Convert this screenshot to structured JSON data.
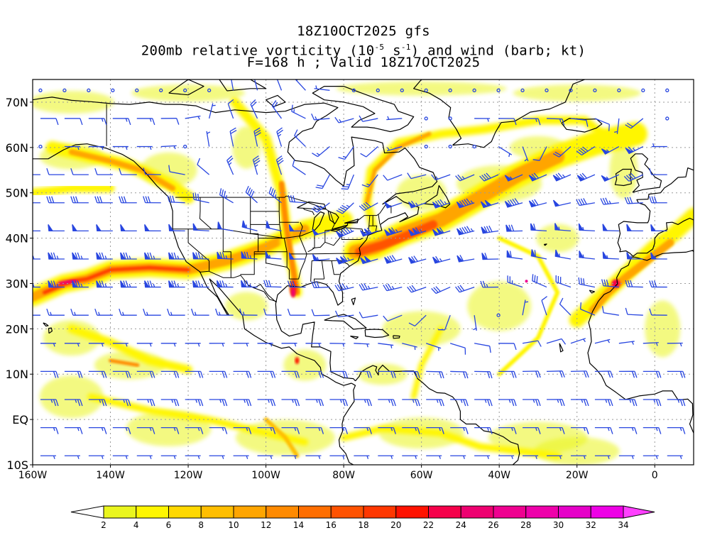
{
  "title": {
    "line1": "18Z10OCT2025 gfs",
    "line2_pre": "200mb relative vorticity (10",
    "line2_exp1": "-5",
    "line2_mid": " s",
    "line2_exp2": "-1",
    "line2_post": ") and wind (barb; kt)",
    "line3": "F=168 h ; Valid 18Z17OCT2025"
  },
  "map": {
    "lon_range": [
      -160,
      10
    ],
    "lat_range": [
      -10,
      75
    ],
    "lat_labels": [
      {
        "lat": 70,
        "label": "70N"
      },
      {
        "lat": 60,
        "label": "60N"
      },
      {
        "lat": 50,
        "label": "50N"
      },
      {
        "lat": 40,
        "label": "40N"
      },
      {
        "lat": 30,
        "label": "30N"
      },
      {
        "lat": 20,
        "label": "20N"
      },
      {
        "lat": 10,
        "label": "10N"
      },
      {
        "lat": 0,
        "label": "EQ"
      },
      {
        "lat": -10,
        "label": "10S"
      }
    ],
    "lon_labels": [
      {
        "lon": -160,
        "label": "160W"
      },
      {
        "lon": -140,
        "label": "140W"
      },
      {
        "lon": -120,
        "label": "120W"
      },
      {
        "lon": -100,
        "label": "100W"
      },
      {
        "lon": -80,
        "label": "80W"
      },
      {
        "lon": -60,
        "label": "60W"
      },
      {
        "lon": -40,
        "label": "40W"
      },
      {
        "lon": -20,
        "label": "20W"
      },
      {
        "lon": 0,
        "label": "0"
      }
    ],
    "barb_color": "#2846e0",
    "coast_color": "#000000"
  },
  "colorbar": {
    "levels": [
      "2",
      "4",
      "6",
      "8",
      "10",
      "12",
      "14",
      "16",
      "18",
      "20",
      "22",
      "24",
      "26",
      "28",
      "30",
      "32",
      "34"
    ],
    "colors": [
      "#eaf51e",
      "#fff600",
      "#ffd800",
      "#ffbe00",
      "#ffa500",
      "#ff8a00",
      "#ff6e00",
      "#ff5200",
      "#ff3700",
      "#ff1200",
      "#f5004a",
      "#ee0070",
      "#ef0090",
      "#ee00aa",
      "#e600c8",
      "#ee00e6"
    ],
    "under_color": "#ffffff",
    "over_color": "#ff40ff"
  }
}
